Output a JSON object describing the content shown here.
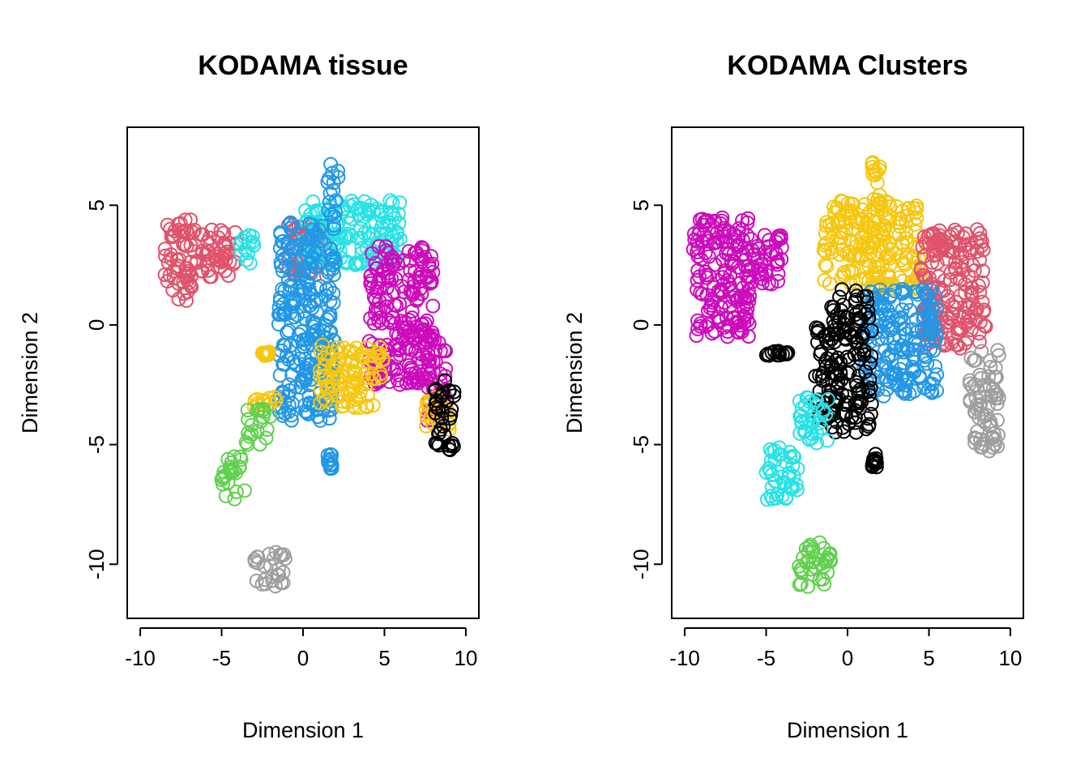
{
  "chart_data": [
    {
      "type": "scatter",
      "title": "KODAMA tissue",
      "xlabel": "Dimension 1",
      "ylabel": "Dimension 2",
      "xlim": [
        -10,
        10
      ],
      "ylim": [
        -11.5,
        7.5
      ],
      "xticks": [
        -10,
        -5,
        0,
        5,
        10
      ],
      "yticks": [
        -10,
        -5,
        0,
        5
      ],
      "xtick_labels": [
        "-10",
        "-5",
        "0",
        "5",
        "10"
      ],
      "ytick_labels": [
        "-10",
        "-5",
        "0",
        "5"
      ],
      "grid": false,
      "legend": "none",
      "marker": "open-circle",
      "series": [
        {
          "color": "#DF536B",
          "regions": [
            [
              -8.5,
              1.0,
              -6.5,
              4.4
            ],
            [
              -6.5,
              2.0,
              -4.0,
              4.0
            ],
            [
              -1.0,
              2.0,
              1.5,
              4.2
            ]
          ]
        },
        {
          "color": "#28E2E5",
          "regions": [
            [
              0.0,
              2.5,
              6.0,
              5.2
            ],
            [
              -4.0,
              2.5,
              -3.0,
              3.8
            ]
          ]
        },
        {
          "color": "#2297E6",
          "regions": [
            [
              -1.5,
              -4.0,
              2.0,
              4.5
            ],
            [
              1.5,
              4.5,
              2.2,
              6.9
            ],
            [
              1.5,
              -6.0,
              1.8,
              -5.4
            ]
          ]
        },
        {
          "color": "#CD0BBC",
          "regions": [
            [
              4.0,
              -2.5,
              8.0,
              3.3
            ],
            [
              7.5,
              -4.0,
              8.8,
              -0.5
            ]
          ]
        },
        {
          "color": "#F5C710",
          "regions": [
            [
              1.0,
              -3.5,
              5.0,
              -0.8
            ],
            [
              7.5,
              -4.5,
              9.0,
              -3.0
            ],
            [
              -3.0,
              -3.5,
              -1.5,
              -3.0
            ],
            [
              -2.5,
              -1.3,
              -2.0,
              -1.1
            ]
          ]
        },
        {
          "color": "#000000",
          "regions": [
            [
              8.0,
              -5.3,
              9.3,
              -2.3
            ]
          ]
        },
        {
          "color": "#61D04F",
          "regions": [
            [
              -5.0,
              -7.3,
              -3.5,
              -5.5
            ],
            [
              -3.5,
              -5.0,
              -2.0,
              -3.5
            ]
          ]
        },
        {
          "color": "#9E9E9E",
          "regions": [
            [
              -3.0,
              -11.0,
              -1.0,
              -9.5
            ]
          ]
        }
      ]
    },
    {
      "type": "scatter",
      "title": "KODAMA Clusters",
      "xlabel": "Dimension 1",
      "ylabel": "Dimension 2",
      "xlim": [
        -10,
        10
      ],
      "ylim": [
        -11.5,
        7.5
      ],
      "xticks": [
        -10,
        -5,
        0,
        5,
        10
      ],
      "yticks": [
        -10,
        -5,
        0,
        5
      ],
      "xtick_labels": [
        "-10",
        "-5",
        "0",
        "5",
        "10"
      ],
      "ytick_labels": [
        "-10",
        "-5",
        "0",
        "5"
      ],
      "grid": false,
      "legend": "none",
      "marker": "open-circle",
      "series": [
        {
          "color": "#CD0BBC",
          "regions": [
            [
              -9.5,
              -0.5,
              -6.0,
              4.5
            ],
            [
              -6.0,
              1.5,
              -4.0,
              3.8
            ]
          ]
        },
        {
          "color": "#F5C710",
          "regions": [
            [
              -1.5,
              1.5,
              4.5,
              5.2
            ],
            [
              1.5,
              5.0,
              2.0,
              6.9
            ]
          ]
        },
        {
          "color": "#DF536B",
          "regions": [
            [
              4.5,
              -1.0,
              8.5,
              4.0
            ]
          ]
        },
        {
          "color": "#2297E6",
          "regions": [
            [
              1.0,
              -3.0,
              5.5,
              1.5
            ]
          ]
        },
        {
          "color": "#000000",
          "regions": [
            [
              -1.0,
              -4.5,
              1.5,
              1.5
            ],
            [
              -2.0,
              -4.0,
              -1.0,
              0.0
            ],
            [
              1.5,
              -6.0,
              1.8,
              -5.4
            ],
            [
              -5.0,
              -1.3,
              -3.5,
              -1.1
            ]
          ]
        },
        {
          "color": "#9E9E9E",
          "regions": [
            [
              7.5,
              -5.3,
              9.3,
              -1.0
            ]
          ]
        },
        {
          "color": "#28E2E5",
          "regions": [
            [
              -5.0,
              -7.3,
              -3.0,
              -5.0
            ],
            [
              -3.0,
              -5.0,
              -1.0,
              -3.0
            ]
          ]
        },
        {
          "color": "#61D04F",
          "regions": [
            [
              -3.0,
              -11.0,
              -1.0,
              -9.0
            ]
          ]
        }
      ]
    }
  ]
}
